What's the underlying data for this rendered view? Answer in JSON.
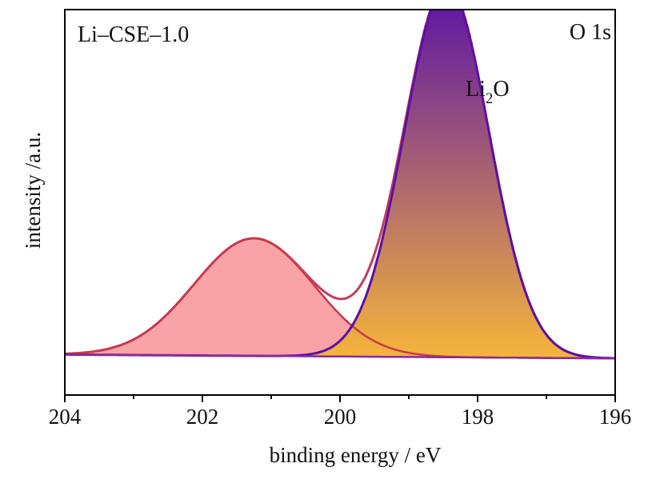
{
  "chart_data": {
    "type": "line",
    "xlabel": "binding energy / eV",
    "ylabel": "intensity /a.u.",
    "x_ticks": [
      "204",
      "202",
      "200",
      "198",
      "196"
    ],
    "xlim": [
      204,
      196
    ],
    "x_reversed": true,
    "y_ticks_shown": false,
    "ylim": [
      0,
      1
    ],
    "sample_label": "Li–CSE–1.0",
    "region_label": "O 1s",
    "peak_label": {
      "main": "Li",
      "sub": "2",
      "tail": "O"
    },
    "baseline": {
      "start": 0.105,
      "end": 0.095
    },
    "components": [
      {
        "center": 201.25,
        "height": 0.305,
        "fwhm": 2.05,
        "fill": "#f9a3a6",
        "stroke": "#c8394e"
      },
      {
        "center": 198.45,
        "height": 0.965,
        "fwhm": 1.45,
        "fill_top": "#5a10a8",
        "fill_bottom": "#f5b53a",
        "stroke": "#5b10a6"
      }
    ],
    "envelope": {
      "stroke": "#c03d5d"
    },
    "raw_data": {
      "stroke": "#b5b5b5",
      "dashed": true
    },
    "colors": {
      "axis": "#000000",
      "background": "#ffffff"
    }
  }
}
